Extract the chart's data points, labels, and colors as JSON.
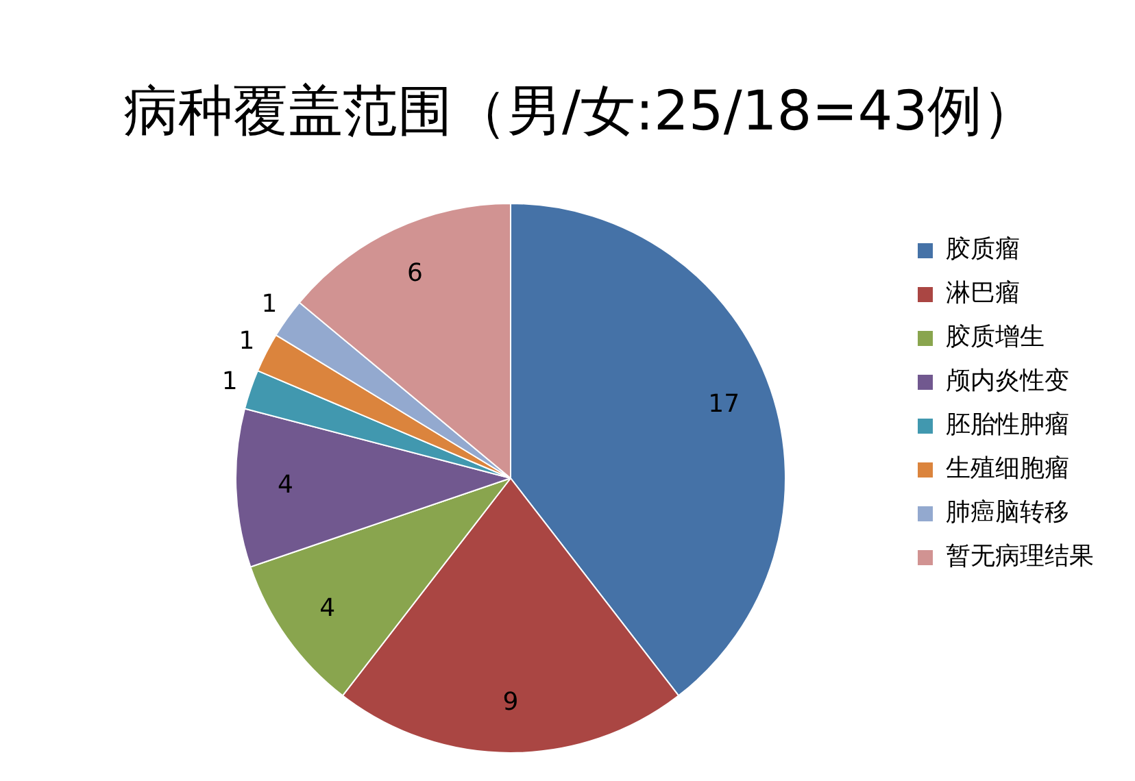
{
  "chart_data": {
    "type": "pie",
    "title": "病种覆盖范围（男/女:25/18=43例）",
    "categories": [
      "胶质瘤",
      "淋巴瘤",
      "胶质增生",
      "颅内炎性变",
      "胚胎性肿瘤",
      "生殖细胞瘤",
      "肺癌脑转移",
      "暂无病理结果"
    ],
    "values": [
      17,
      9,
      4,
      4,
      1,
      1,
      1,
      6
    ],
    "colors": [
      "#4572a7",
      "#aa4643",
      "#89a54e",
      "#71588f",
      "#4198af",
      "#db843d",
      "#93a9cf",
      "#d19392"
    ],
    "data_labels": true,
    "legend": "right"
  }
}
